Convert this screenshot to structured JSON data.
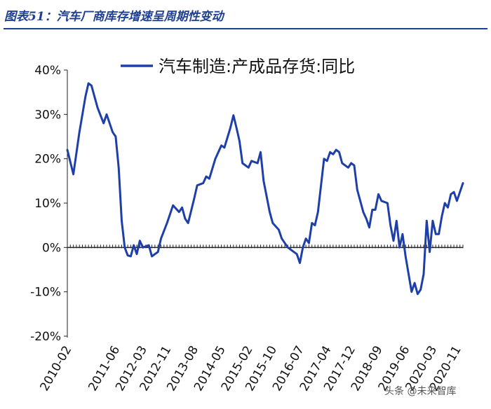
{
  "header": {
    "title": "图表51：汽车厂商库存增速呈周期性变动"
  },
  "watermark": "头条 @未来智库",
  "chart_data": {
    "type": "line",
    "title": "",
    "xlabel": "",
    "ylabel": "",
    "ylim": [
      -20,
      40
    ],
    "yticks": [
      -20,
      -10,
      0,
      10,
      20,
      30,
      40
    ],
    "ytick_labels": [
      "-20%",
      "-10%",
      "0%",
      "10%",
      "20%",
      "30%",
      "40%"
    ],
    "x_ticks": [
      "2010-02",
      "2011-06",
      "2012-03",
      "2012-11",
      "2013-08",
      "2014-05",
      "2015-02",
      "2015-10",
      "2016-07",
      "2017-04",
      "2017-12",
      "2018-09",
      "2019-06",
      "2020-03",
      "2020-11"
    ],
    "x_range": [
      "2010-02",
      "2021-01"
    ],
    "grid": false,
    "legend_position": "top",
    "series": [
      {
        "name": "汽车制造:产成品存货:同比",
        "color": "#1f3fa8",
        "points": [
          [
            "2010-02",
            22
          ],
          [
            "2010-04",
            16.5
          ],
          [
            "2010-06",
            26
          ],
          [
            "2010-08",
            34
          ],
          [
            "2010-09",
            37
          ],
          [
            "2010-10",
            36.5
          ],
          [
            "2010-12",
            31.5
          ],
          [
            "2011-02",
            28
          ],
          [
            "2011-03",
            30
          ],
          [
            "2011-05",
            26
          ],
          [
            "2011-06",
            25
          ],
          [
            "2011-07",
            18
          ],
          [
            "2011-08",
            6
          ],
          [
            "2011-09",
            0
          ],
          [
            "2011-10",
            -1.8
          ],
          [
            "2011-11",
            -2
          ],
          [
            "2011-12",
            0.5
          ],
          [
            "2012-01",
            -1.5
          ],
          [
            "2012-02",
            1.5
          ],
          [
            "2012-03",
            0
          ],
          [
            "2012-05",
            0.5
          ],
          [
            "2012-06",
            -2
          ],
          [
            "2012-08",
            -1
          ],
          [
            "2012-09",
            2
          ],
          [
            "2012-11",
            5.5
          ],
          [
            "2013-01",
            9.5
          ],
          [
            "2013-03",
            8
          ],
          [
            "2013-04",
            9
          ],
          [
            "2013-05",
            6.5
          ],
          [
            "2013-06",
            5.5
          ],
          [
            "2013-08",
            11
          ],
          [
            "2013-09",
            14
          ],
          [
            "2013-11",
            14.5
          ],
          [
            "2013-12",
            16
          ],
          [
            "2014-01",
            15.5
          ],
          [
            "2014-03",
            20
          ],
          [
            "2014-05",
            23
          ],
          [
            "2014-06",
            22.5
          ],
          [
            "2014-08",
            27
          ],
          [
            "2014-09",
            29.8
          ],
          [
            "2014-10",
            27
          ],
          [
            "2014-11",
            24
          ],
          [
            "2014-12",
            19
          ],
          [
            "2015-02",
            18
          ],
          [
            "2015-03",
            19.5
          ],
          [
            "2015-05",
            19
          ],
          [
            "2015-06",
            21.5
          ],
          [
            "2015-07",
            15
          ],
          [
            "2015-09",
            8
          ],
          [
            "2015-10",
            5.5
          ],
          [
            "2015-12",
            4
          ],
          [
            "2016-01",
            2
          ],
          [
            "2016-03",
            0
          ],
          [
            "2016-05",
            -1
          ],
          [
            "2016-06",
            -1.5
          ],
          [
            "2016-07",
            -3.5
          ],
          [
            "2016-08",
            0
          ],
          [
            "2016-09",
            2
          ],
          [
            "2016-10",
            1
          ],
          [
            "2016-11",
            5.5
          ],
          [
            "2016-12",
            5
          ],
          [
            "2017-01",
            8
          ],
          [
            "2017-03",
            20
          ],
          [
            "2017-04",
            19.5
          ],
          [
            "2017-05",
            21.5
          ],
          [
            "2017-06",
            21
          ],
          [
            "2017-07",
            22
          ],
          [
            "2017-08",
            21.5
          ],
          [
            "2017-09",
            19
          ],
          [
            "2017-10",
            18.5
          ],
          [
            "2017-11",
            18
          ],
          [
            "2017-12",
            19
          ],
          [
            "2018-01",
            18.5
          ],
          [
            "2018-02",
            13
          ],
          [
            "2018-04",
            8
          ],
          [
            "2018-05",
            6.5
          ],
          [
            "2018-06",
            4.5
          ],
          [
            "2018-07",
            8.5
          ],
          [
            "2018-08",
            8.5
          ],
          [
            "2018-09",
            12
          ],
          [
            "2018-10",
            10.5
          ],
          [
            "2018-12",
            10
          ],
          [
            "2019-01",
            5
          ],
          [
            "2019-02",
            1.5
          ],
          [
            "2019-03",
            6
          ],
          [
            "2019-04",
            0
          ],
          [
            "2019-05",
            3
          ],
          [
            "2019-06",
            -2
          ],
          [
            "2019-07",
            -6
          ],
          [
            "2019-08",
            -10
          ],
          [
            "2019-09",
            -8
          ],
          [
            "2019-10",
            -10.5
          ],
          [
            "2019-11",
            -9.5
          ],
          [
            "2019-12",
            -6
          ],
          [
            "2020-01",
            6
          ],
          [
            "2020-02",
            -1
          ],
          [
            "2020-03",
            6
          ],
          [
            "2020-04",
            3
          ],
          [
            "2020-05",
            3
          ],
          [
            "2020-06",
            7
          ],
          [
            "2020-07",
            10
          ],
          [
            "2020-08",
            9
          ],
          [
            "2020-09",
            12
          ],
          [
            "2020-10",
            12.5
          ],
          [
            "2020-11",
            10.5
          ],
          [
            "2020-12",
            12.5
          ],
          [
            "2021-01",
            14.5
          ]
        ]
      }
    ]
  }
}
